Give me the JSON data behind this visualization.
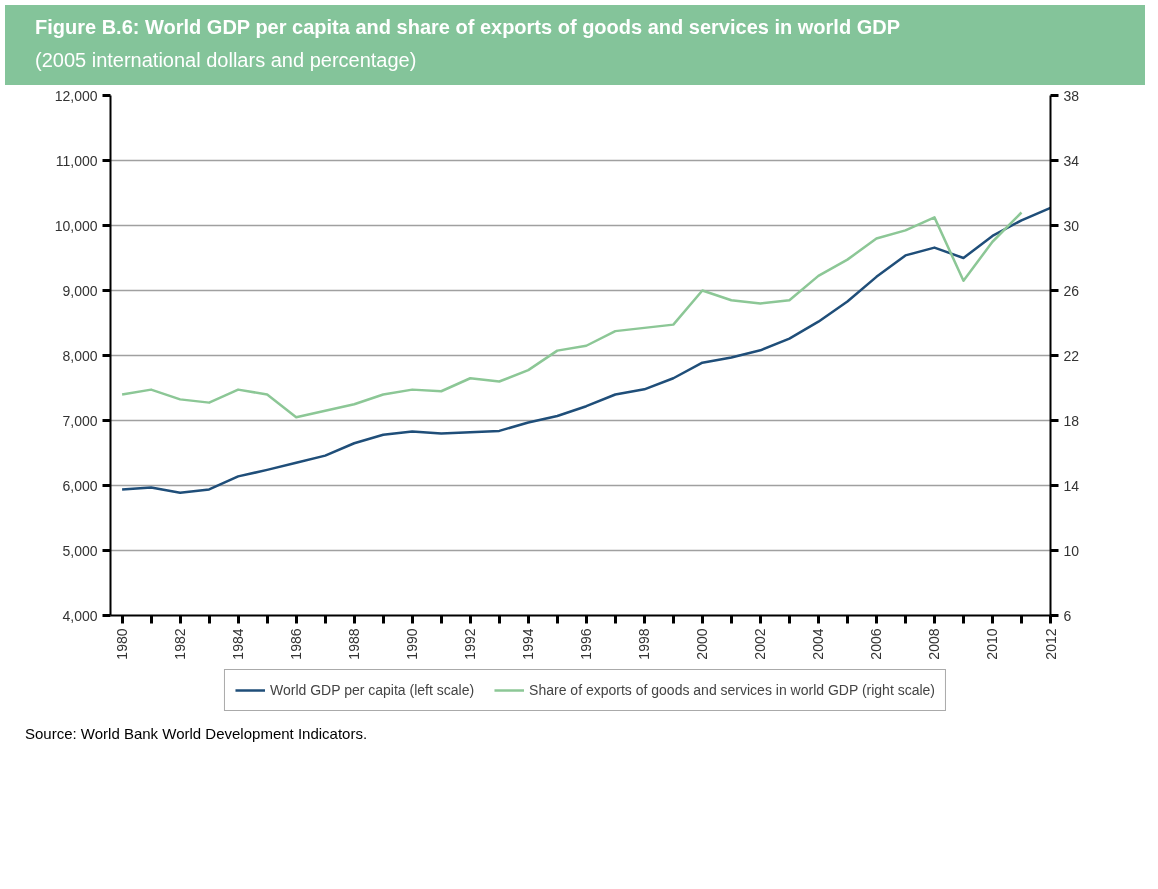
{
  "chart_data": {
    "type": "line",
    "title": "Figure B.6: World GDP per capita and share of exports of goods and services in world GDP",
    "subtitle": "(2005 international dollars and percentage)",
    "x": [
      1980,
      1981,
      1982,
      1983,
      1984,
      1985,
      1986,
      1987,
      1988,
      1989,
      1990,
      1991,
      1992,
      1993,
      1994,
      1995,
      1996,
      1997,
      1998,
      1999,
      2000,
      2001,
      2002,
      2003,
      2004,
      2005,
      2006,
      2007,
      2008,
      2009,
      2010,
      2011,
      2012
    ],
    "series": [
      {
        "name": "World GDP per capita (left scale)",
        "color": "#1f4e79",
        "values": [
          5940,
          5970,
          5890,
          5940,
          6140,
          6240,
          6350,
          6460,
          6650,
          6780,
          6830,
          6800,
          6820,
          6840,
          6970,
          7070,
          7220,
          7400,
          7480,
          7650,
          7890,
          7970,
          8080,
          8260,
          8520,
          8830,
          9210,
          9540,
          9660,
          9500,
          9840,
          10080,
          10270
        ]
      },
      {
        "name": "Share of exports of goods and services in world GDP (right scale)",
        "color": "#8cc796",
        "axis": "y2",
        "values": [
          19.6,
          19.9,
          19.3,
          19.1,
          19.9,
          19.6,
          18.2,
          18.6,
          19.0,
          19.6,
          19.9,
          19.8,
          20.6,
          20.4,
          21.1,
          22.3,
          22.6,
          23.5,
          23.7,
          23.9,
          26.0,
          25.4,
          25.2,
          25.4,
          26.9,
          27.9,
          29.2,
          29.7,
          30.5,
          26.6,
          29.0,
          30.8,
          null
        ]
      }
    ],
    "xlim": [
      1979.6,
      2012
    ],
    "xticks": [
      1980,
      {
        "value": 1981,
        "label": null
      },
      1982,
      {
        "value": 1983,
        "label": null
      },
      1984,
      {
        "value": 1985,
        "label": null
      },
      1986,
      {
        "value": 1987,
        "label": null
      },
      1988,
      {
        "value": 1989,
        "label": null
      },
      1990,
      {
        "value": 1991,
        "label": null
      },
      1992,
      {
        "value": 1993,
        "label": null
      },
      1994,
      {
        "value": 1995,
        "label": null
      },
      1996,
      {
        "value": 1997,
        "label": null
      },
      1998,
      {
        "value": 1999,
        "label": null
      },
      2000,
      {
        "value": 2001,
        "label": null
      },
      2002,
      {
        "value": 2003,
        "label": null
      },
      2004,
      {
        "value": 2005,
        "label": null
      },
      2006,
      {
        "value": 2007,
        "label": null
      },
      2008,
      {
        "value": 2009,
        "label": null
      },
      2010,
      {
        "value": 2011,
        "label": null
      },
      2012
    ],
    "ylim": [
      4000,
      12000
    ],
    "yticks": [
      {
        "value": 4000,
        "label": "4,000"
      },
      {
        "value": 5000,
        "label": "5,000"
      },
      {
        "value": 6000,
        "label": "6,000"
      },
      {
        "value": 7000,
        "label": "7,000"
      },
      {
        "value": 8000,
        "label": "8,000"
      },
      {
        "value": 9000,
        "label": "9,000"
      },
      {
        "value": 10000,
        "label": "10,000"
      },
      {
        "value": 11000,
        "label": "11,000"
      },
      {
        "value": 12000,
        "label": "12,000"
      }
    ],
    "y2lim": [
      6,
      38
    ],
    "y2ticks": [
      6,
      10,
      14,
      18,
      22,
      26,
      30,
      34,
      38
    ],
    "grid": "y",
    "legend": "bottom",
    "line_style": "solid",
    "annotations": [
      "Source: World Bank World Development Indicators."
    ]
  }
}
